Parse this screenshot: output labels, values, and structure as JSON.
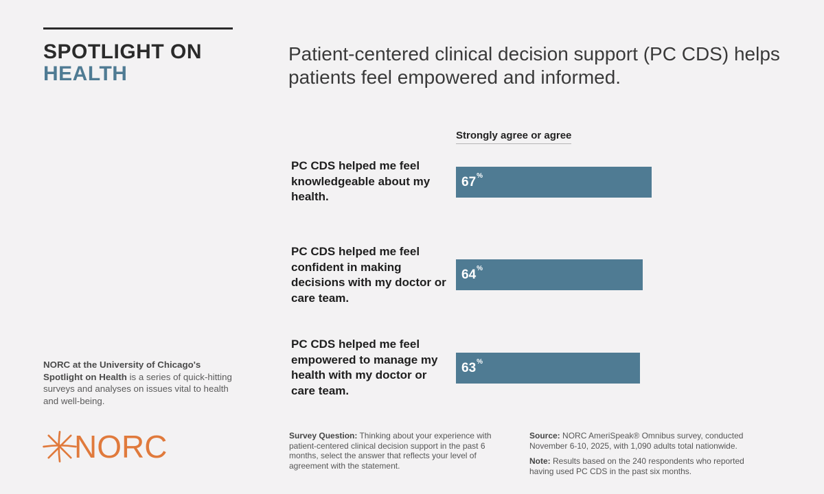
{
  "brand": {
    "line1": "SPOTLIGHT ON",
    "line2": "HEALTH"
  },
  "headline": "Patient-centered clinical decision support (PC CDS) helps patients feel empowered and informed.",
  "chart_data": {
    "type": "bar",
    "orientation": "horizontal",
    "title": "Patient-centered clinical decision support (PC CDS) helps patients feel empowered and informed.",
    "series_name": "Strongly agree or agree",
    "categories": [
      "PC CDS helped me feel knowledgeable about my health.",
      "PC CDS helped me feel confident in making decisions with my doctor or care team.",
      "PC CDS helped me feel empowered to manage my health with my doctor or care team."
    ],
    "values": [
      67,
      64,
      63
    ],
    "value_labels": [
      "67",
      "64",
      "63"
    ],
    "unit": "%",
    "xlim": [
      0,
      100
    ],
    "grid": false,
    "legend": "none"
  },
  "about": {
    "bold": "NORC at the University of Chicago's Spotlight on Health",
    "rest": " is a series of quick-hitting surveys and analyses on issues vital to health and well-being."
  },
  "logo": {
    "text": "NORC",
    "icon": "starburst-icon",
    "color": "#e07a3c"
  },
  "footer": {
    "question_label": "Survey Question:",
    "question_text": " Thinking about your experience with patient-centered clinical decision support in the past 6 months, select the answer that reflects your level of agreement with the statement.",
    "source_label": "Source:",
    "source_text": " NORC AmeriSpeak® Omnibus survey, conducted November 6-10, 2025, with 1,090 adults total nationwide.",
    "note_label": "Note:",
    "note_text": " Results based on the 240 respondents who reported having used PC CDS in the past six months."
  },
  "colors": {
    "bar": "#4f7b93",
    "accent": "#4f7b93",
    "background": "#f3f2f3"
  }
}
